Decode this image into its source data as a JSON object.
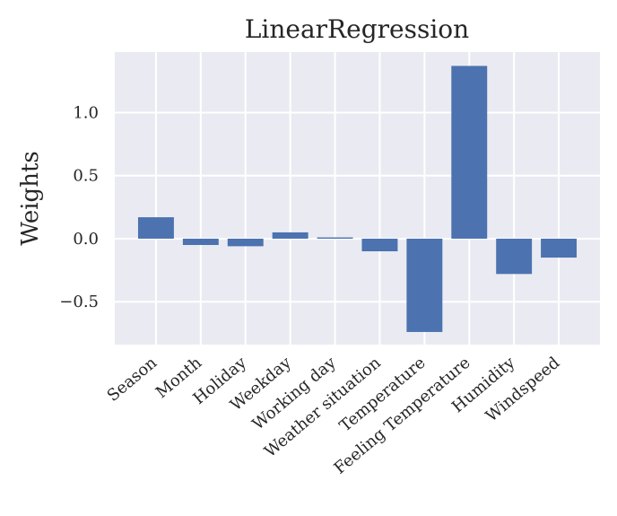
{
  "chart_data": {
    "type": "bar",
    "title": "LinearRegression",
    "ylabel": "Weights",
    "categories": [
      "Season",
      "Month",
      "Holiday",
      "Weekday",
      "Working day",
      "Weather situation",
      "Temperature",
      "Feeling Temperature",
      "Humidity",
      "Windspeed"
    ],
    "values": [
      0.17,
      -0.05,
      -0.06,
      0.05,
      0.01,
      -0.1,
      -0.74,
      1.37,
      -0.28,
      -0.15
    ],
    "ylim": [
      -0.84,
      1.48
    ],
    "yticks": [
      1.0,
      0.5,
      0.0,
      -0.5
    ],
    "ytick_labels": [
      "1.0",
      "0.5",
      "0.0",
      "−0.5"
    ],
    "grid": true,
    "colors": {
      "bar": "#4c72b0",
      "plot_background": "#eaeaf2",
      "grid": "#ffffff"
    }
  }
}
